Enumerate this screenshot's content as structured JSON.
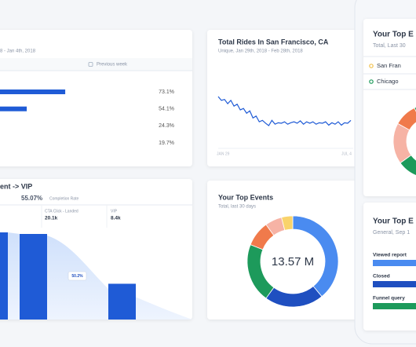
{
  "card_sessions": {
    "date_range": "8 - Jan 4th, 2018",
    "compare_label": "Previous week",
    "values": [
      73.1,
      54.1,
      24.3,
      19.7
    ],
    "value_labels": [
      "73.1%",
      "54.1%",
      "24.3%",
      "19.7%"
    ],
    "color": "#1f5bd6"
  },
  "card_rides": {
    "title": "Total Rides In San Francisco, CA",
    "subtitle": "Unique, Jan 29th, 2018 - Feb 28th, 2018",
    "x_labels": [
      "JAN 29",
      "JUL 4"
    ],
    "color": "#1f5bd6",
    "values": [
      78,
      70,
      72,
      63,
      70,
      58,
      62,
      50,
      53,
      43,
      48,
      33,
      37,
      25,
      28,
      22,
      17,
      28,
      20,
      23,
      22,
      25,
      20,
      23,
      25,
      22,
      27,
      20,
      25,
      22,
      25,
      20,
      23,
      22,
      25,
      18,
      23,
      20,
      25,
      18,
      23,
      22,
      28
    ]
  },
  "card_funnel": {
    "title": "ent -> VIP",
    "completion": "55.07%",
    "completion_label": "Completion Rate",
    "columns": [
      {
        "name": "CTA Click - Landed",
        "value": 20100,
        "value_label": "20.1k"
      },
      {
        "name": "VIP",
        "value": 8400,
        "value_label": "8.4k"
      }
    ],
    "conversion_label": "50.2%",
    "color": "#1f5bd6"
  },
  "card_events": {
    "title": "Your Top Events",
    "subtitle": "Total, last 30 days",
    "total": "13.57 M",
    "segments": [
      {
        "value": 39,
        "color": "#4a8bf0"
      },
      {
        "value": 21,
        "color": "#1f4fc0"
      },
      {
        "value": 21,
        "color": "#1d9a5b"
      },
      {
        "value": 9,
        "color": "#f07a4b"
      },
      {
        "value": 6,
        "color": "#f6b3a5"
      },
      {
        "value": 4,
        "color": "#f9d36b"
      }
    ]
  },
  "phone": {
    "card1": {
      "title": "Your Top E",
      "subtitle": "Total, Last 30",
      "legend": [
        {
          "name": "San Fran",
          "color": "#f2c14e"
        },
        {
          "name": "Chicago",
          "color": "#1d9a5b"
        }
      ],
      "segments": [
        {
          "value": 54,
          "color": "#4a8bf0"
        },
        {
          "value": 11,
          "color": "#1d9a5b"
        },
        {
          "value": 18,
          "color": "#f6b3a5"
        },
        {
          "value": 10,
          "color": "#f07a4b"
        },
        {
          "value": 7,
          "color": "#1d9a5b"
        }
      ]
    },
    "card2": {
      "title": "Your Top E",
      "subtitle": "General, Sep 1",
      "rows": [
        "Viewed report",
        "Closed",
        "Funnel query"
      ]
    }
  }
}
